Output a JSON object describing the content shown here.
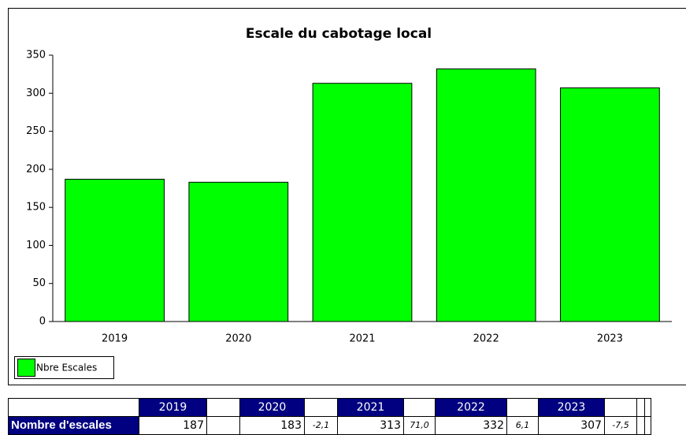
{
  "chart_data": {
    "type": "bar",
    "title": "Escale du cabotage local",
    "categories": [
      "2019",
      "2020",
      "2021",
      "2022",
      "2023"
    ],
    "series": [
      {
        "name": "Nbre Escales",
        "color": "#00ff00",
        "values": [
          187,
          183,
          313,
          332,
          307
        ]
      }
    ],
    "ylim": [
      0,
      350
    ],
    "yticks": [
      0,
      50,
      100,
      150,
      200,
      250,
      300,
      350
    ]
  },
  "table": {
    "columns": [
      "2019",
      "2020",
      "2021",
      "2022",
      "2023"
    ],
    "rows": [
      {
        "label": "Nombre d'escales",
        "values": [
          "187",
          "183",
          "313",
          "332",
          "307"
        ],
        "changes": [
          "-2,1",
          "71,0",
          "6,1",
          "-7,5"
        ]
      }
    ]
  }
}
